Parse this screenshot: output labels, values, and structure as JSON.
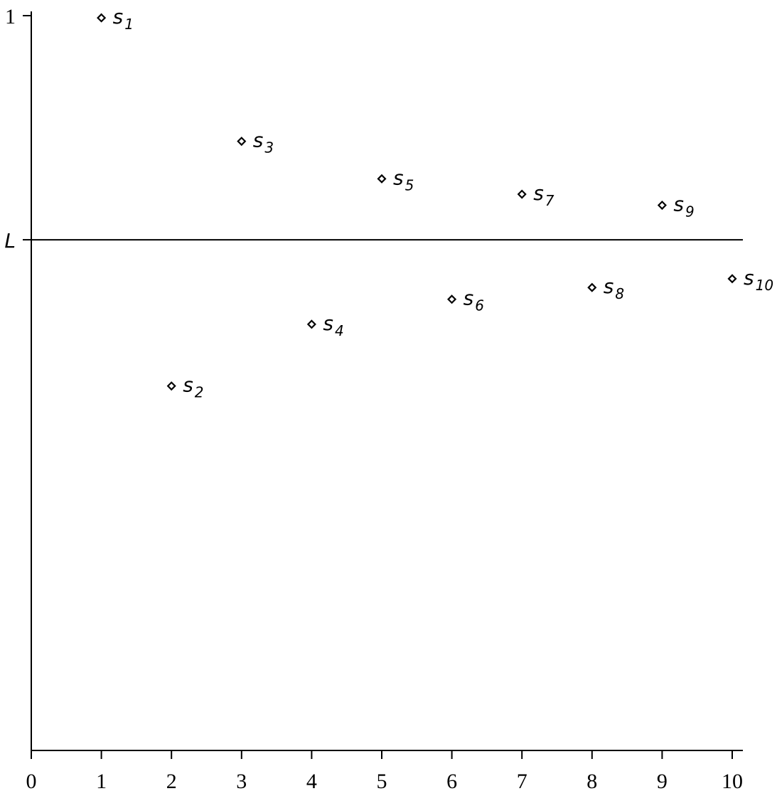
{
  "chart_data": {
    "type": "scatter",
    "x": [
      1,
      2,
      3,
      4,
      5,
      6,
      7,
      8,
      9,
      10
    ],
    "values": [
      0.997,
      0.496,
      0.829,
      0.58,
      0.778,
      0.614,
      0.757,
      0.63,
      0.742,
      0.642
    ],
    "point_labels": [
      [
        "s",
        "1"
      ],
      [
        "s",
        "2"
      ],
      [
        "s",
        "3"
      ],
      [
        "s",
        "4"
      ],
      [
        "s",
        "5"
      ],
      [
        "s",
        "6"
      ],
      [
        "s",
        "7"
      ],
      [
        "s",
        "8"
      ],
      [
        "s",
        "9"
      ],
      [
        "s",
        "10"
      ]
    ],
    "color": "#000000",
    "xlim": [
      0,
      10
    ],
    "ylim": [
      0,
      1
    ],
    "xticks": [
      0,
      1,
      2,
      3,
      4,
      5,
      6,
      7,
      8,
      9,
      10
    ],
    "yticks": [
      {
        "value": 0.695,
        "label": "L"
      },
      1
    ],
    "reference_line_tick": 0
  }
}
